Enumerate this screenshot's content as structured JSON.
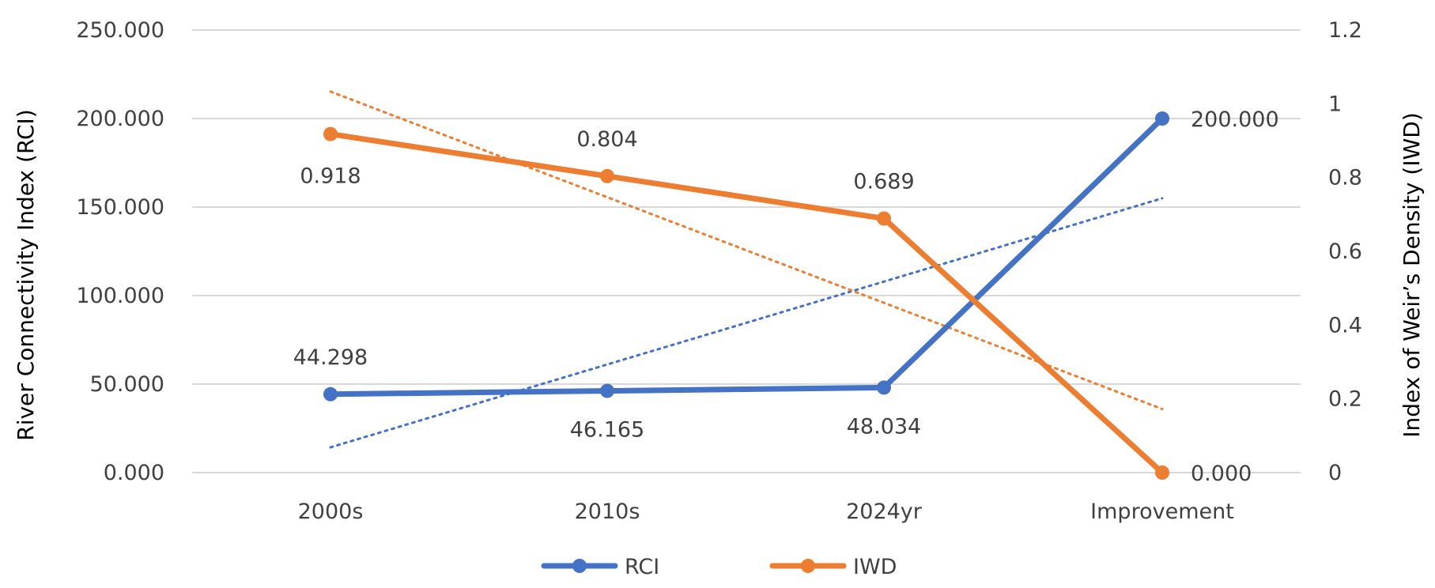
{
  "chart_data": {
    "type": "line",
    "categories": [
      "2000s",
      "2010s",
      "2024yr",
      "Improvement"
    ],
    "series": [
      {
        "name": "RCI",
        "axis": "left",
        "color": "#4472C4",
        "values": [
          44.298,
          46.165,
          48.034,
          200.0
        ],
        "labels": [
          "44.298",
          "46.165",
          "48.034",
          "200.000"
        ],
        "trendline": "linear, dotted"
      },
      {
        "name": "IWD",
        "axis": "right",
        "color": "#ED7D31",
        "values": [
          0.918,
          0.804,
          0.689,
          0.0
        ],
        "labels": [
          "0.918",
          "0.804",
          "0.689",
          "0.000"
        ],
        "trendline": "linear, dotted"
      }
    ],
    "left_axis": {
      "label": "River Connectivity Index (RCI)",
      "ticks": [
        "0.000",
        "50.000",
        "100.000",
        "150.000",
        "200.000",
        "250.000"
      ],
      "ylim": [
        0,
        250
      ]
    },
    "right_axis": {
      "label": "Index of Weir’s Density (IWD)",
      "ticks": [
        "0",
        "0.2",
        "0.4",
        "0.6",
        "0.8",
        "1",
        "1.2"
      ],
      "ylim": [
        0,
        1.2
      ]
    },
    "grid": "horizontal",
    "legend": "bottom-center"
  }
}
